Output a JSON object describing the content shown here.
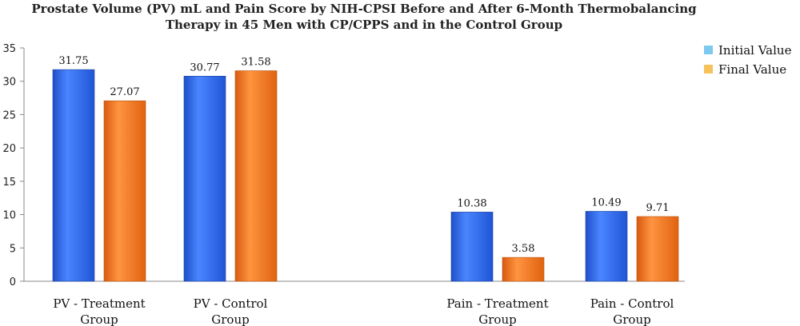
{
  "chart_data": {
    "type": "bar",
    "title_lines": [
      "Prostate Volume (PV) mL and  Pain Score by NIH-CPSI Before and After 6-Month Thermobalancing",
      "Therapy in 45 Men with CP/CPPS and in the Control Group"
    ],
    "categories": [
      [
        "PV - Treatment",
        "Group"
      ],
      [
        "PV - Control",
        "Group"
      ],
      [
        "Pain - Treatment",
        "Group"
      ],
      [
        "Pain - Control",
        "Group"
      ]
    ],
    "series": [
      {
        "name": "Initial Value",
        "values": [
          31.75,
          30.77,
          10.38,
          10.49
        ],
        "color": "#2e6df0",
        "legend_color": "#7ec8ef"
      },
      {
        "name": "Final Value",
        "values": [
          27.07,
          31.58,
          3.58,
          9.71
        ],
        "color": "#f07a22",
        "legend_color": "#f6c25c"
      }
    ],
    "data_labels": [
      [
        "31.75",
        "30.77",
        "10.38",
        "10.49"
      ],
      [
        "27.07",
        "31.58",
        "3.58",
        "9.71"
      ]
    ],
    "ylim": [
      0,
      35
    ],
    "yticks": [
      0,
      5,
      10,
      15,
      20,
      25,
      30,
      35
    ],
    "grid": false,
    "legend_position": "top-right",
    "xlabel": "",
    "ylabel": ""
  }
}
